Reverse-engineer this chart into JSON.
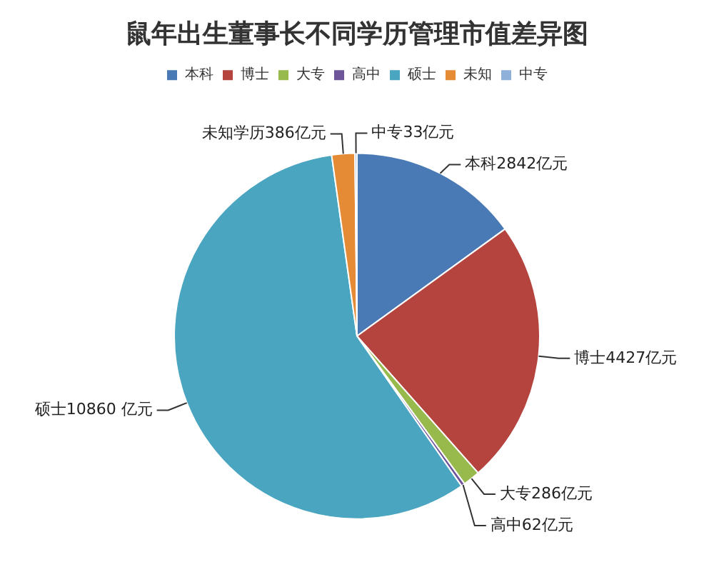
{
  "chart_data": {
    "type": "pie",
    "title": "鼠年出生董事长不同学历管理市值差异图",
    "categories": [
      "本科",
      "博士",
      "大专",
      "高中",
      "硕士",
      "未知",
      "中专"
    ],
    "values": [
      2842,
      4427,
      286,
      62,
      10860,
      386,
      33
    ],
    "value_labels": [
      "本科2842亿元",
      "博士4427亿元",
      "大专286亿元",
      "高中62亿元",
      "硕士10860 亿元",
      "未知学历386亿元",
      "中专33亿元"
    ],
    "colors": [
      "#4a7ab5",
      "#b5443f",
      "#98b94c",
      "#6e5499",
      "#4aa5c0",
      "#e58a35",
      "#8fb0d8"
    ],
    "legend": "top"
  }
}
